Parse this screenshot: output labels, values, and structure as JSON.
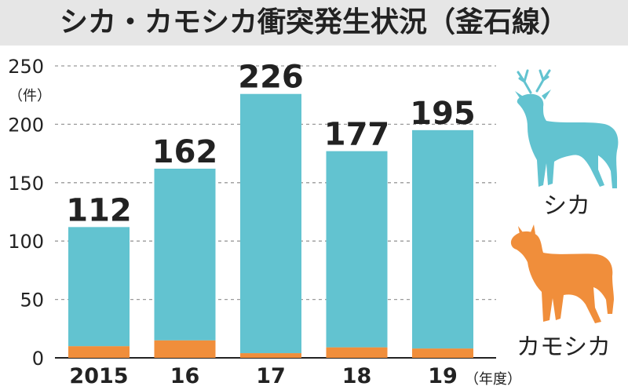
{
  "title": "シカ・カモシカ衝突発生状況（釜石線）",
  "chart_data": {
    "type": "bar",
    "stacked": true,
    "categories": [
      "2015",
      "16",
      "17",
      "18",
      "19"
    ],
    "series": [
      {
        "name": "シカ",
        "values": [
          102,
          147,
          222,
          168,
          187
        ],
        "color": "#62c3d0"
      },
      {
        "name": "カモシカ",
        "values": [
          10,
          15,
          4,
          9,
          8
        ],
        "color": "#f08e3b"
      }
    ],
    "totals": [
      "112",
      "162",
      "226",
      "177",
      "195"
    ],
    "y_ticks": [
      {
        "value": 0,
        "label": "0"
      },
      {
        "value": 50,
        "label": "50"
      },
      {
        "value": 100,
        "label": "100"
      },
      {
        "value": 150,
        "label": "150"
      },
      {
        "value": 200,
        "label": "200"
      },
      {
        "value": 250,
        "label": "250"
      }
    ],
    "ylim": [
      0,
      250
    ],
    "y_unit": "（件）",
    "x_unit": "（年度）",
    "grid": "dashed-horizontal",
    "legend_placement": "right"
  },
  "legend": [
    {
      "label": "シカ",
      "icon": "deer-icon",
      "color": "#62c3d0"
    },
    {
      "label": "カモシカ",
      "icon": "serow-icon",
      "color": "#f08e3b"
    }
  ]
}
